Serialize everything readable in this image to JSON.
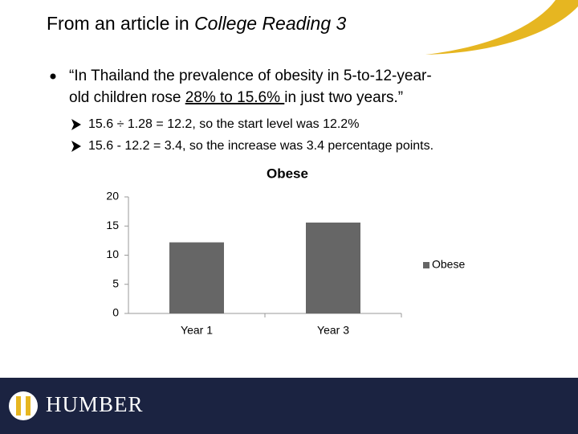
{
  "header": {
    "title": "From an article in ",
    "title_italic": "College Reading 3"
  },
  "bullet": {
    "line1": "“In Thailand the prevalence of obesity in 5-to-12-year-",
    "line2_before": "old children rose ",
    "line2_underlined": "28% to 15.6% ",
    "line2_after": "in just two years.”"
  },
  "sub_bullets": [
    "15.6 ÷ 1.28 = 12.2, so the start level was 12.2%",
    "15.6 - 12.2 = 3.4, so the increase was 3.4 percentage points."
  ],
  "chart_data": {
    "type": "bar",
    "title": "Obese",
    "categories": [
      "Year 1",
      "Year 3"
    ],
    "series": [
      {
        "name": "Obese",
        "color": "#666666",
        "values": [
          12.2,
          15.6
        ]
      }
    ],
    "ylim": [
      0,
      20
    ],
    "yticks": [
      0,
      5,
      10,
      15,
      20
    ],
    "legend": "right"
  },
  "footer": {
    "logo": "HUMBER"
  }
}
